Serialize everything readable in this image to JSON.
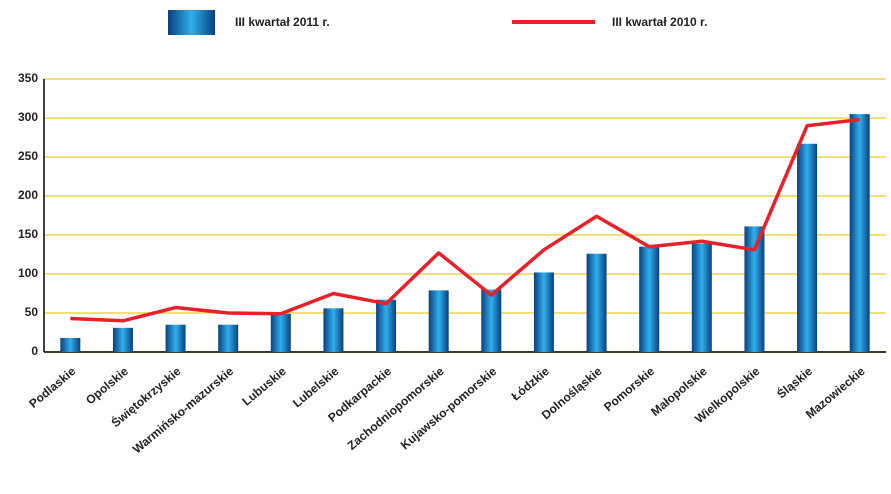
{
  "chart_data": {
    "type": "bar",
    "categories": [
      "Podlaskie",
      "Opolskie",
      "Świętokrzyskie",
      "Warmińsko-mazurskie",
      "Lubuskie",
      "Lubelskie",
      "Podkarpackie",
      "Zachodniopomorskie",
      "Kujawsko-pomorskie",
      "Łódzkie",
      "Dolnośląskie",
      "Pomorskie",
      "Małopolskie",
      "Wielkopolskie",
      "Śląskie",
      "Mazowieckie"
    ],
    "series": [
      {
        "name": "III kwartał 2011 r.",
        "type": "bar",
        "color": "#1a7cc4",
        "values": [
          18,
          31,
          35,
          35,
          49,
          56,
          67,
          79,
          80,
          102,
          126,
          135,
          139,
          161,
          267,
          305
        ]
      },
      {
        "name": "III kwartał 2010 r.",
        "type": "line",
        "color": "#e8202a",
        "values": [
          43,
          40,
          57,
          50,
          49,
          75,
          62,
          127,
          73,
          131,
          174,
          135,
          142,
          131,
          290,
          298
        ]
      }
    ],
    "ylim": [
      0,
      350
    ],
    "yticks": [
      0,
      50,
      100,
      150,
      200,
      250,
      300,
      350
    ],
    "grid": true
  }
}
